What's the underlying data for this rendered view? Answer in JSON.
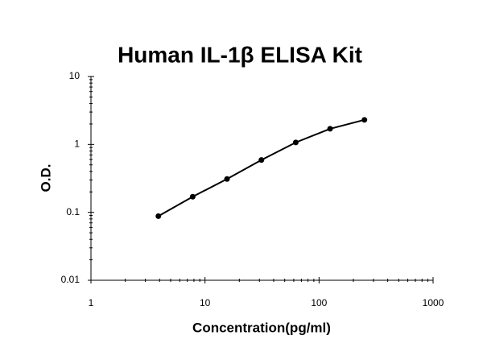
{
  "chart_data": {
    "type": "line",
    "title": "Human IL-1β ELISA Kit",
    "xlabel": "Concentration(pg/ml)",
    "ylabel": "O.D.",
    "x": [
      3.9,
      7.8,
      15.6,
      31.25,
      62.5,
      125,
      250
    ],
    "series": [
      {
        "color": "#000000",
        "values": [
          0.088,
          0.17,
          0.31,
          0.59,
          1.07,
          1.7,
          2.3
        ]
      }
    ],
    "xscale": "log",
    "yscale": "log",
    "xlim": [
      1,
      1000
    ],
    "xticks": [
      1,
      10,
      100,
      1000
    ],
    "ylim": [
      0.01,
      10
    ],
    "yticks": [
      0.01,
      0.1,
      1,
      10
    ]
  }
}
